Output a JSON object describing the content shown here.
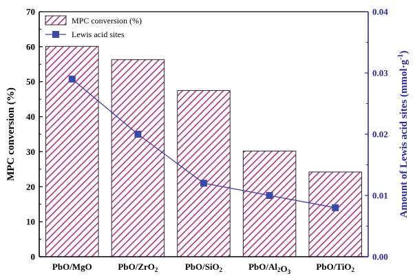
{
  "chart_data": {
    "type": "bar",
    "categories": [
      {
        "main": "PbO/MgO",
        "parts": [
          {
            "t": "PbO/MgO",
            "sub": false
          }
        ]
      },
      {
        "main": "PbO/ZrO2",
        "parts": [
          {
            "t": "PbO/ZrO",
            "sub": false
          },
          {
            "t": "2",
            "sub": true
          }
        ]
      },
      {
        "main": "PbO/SiO2",
        "parts": [
          {
            "t": "PbO/SiO",
            "sub": false
          },
          {
            "t": "2",
            "sub": true
          }
        ]
      },
      {
        "main": "PbO/Al2O3",
        "parts": [
          {
            "t": "PbO/Al",
            "sub": false
          },
          {
            "t": "2",
            "sub": true
          },
          {
            "t": "O",
            "sub": false
          },
          {
            "t": "3",
            "sub": true
          }
        ]
      },
      {
        "main": "PbO/TiO2",
        "parts": [
          {
            "t": "PbO/TiO",
            "sub": false
          },
          {
            "t": "2",
            "sub": true
          }
        ]
      }
    ],
    "series": [
      {
        "name": "MPC conversion (%)",
        "type": "bar",
        "axis": "left",
        "values": [
          60.1,
          56.3,
          47.5,
          30.2,
          24.2
        ]
      },
      {
        "name": "Lewis acid sites",
        "type": "line",
        "axis": "right",
        "values": [
          0.029,
          0.02,
          0.012,
          0.01,
          0.008
        ]
      }
    ],
    "ylabel": "MPC conversion (%)",
    "ylabel_right": "Amount of Lewis acid sites (mmol·g",
    "ylabel_right_sup": "-1",
    "ylabel_right_end": ")",
    "ylim": [
      0,
      70
    ],
    "ylim_right": [
      0,
      0.04
    ],
    "yticks": [
      0,
      10,
      20,
      30,
      40,
      50,
      60,
      70
    ],
    "yticks_right": [
      "0.00",
      "0.01",
      "0.02",
      "0.03",
      "0.04"
    ],
    "legend_position": "top-left",
    "colors": {
      "bar_stripe": "#b0307f",
      "bar_outline": "#2a2a2a",
      "line": "#4040a0",
      "marker": "#3a4aa8",
      "right_axis": "#2a2a9a"
    }
  }
}
